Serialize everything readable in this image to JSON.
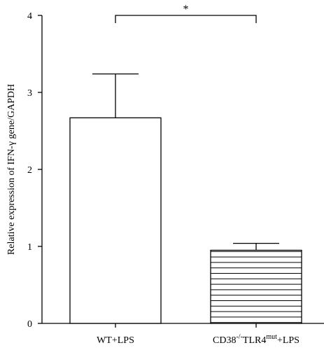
{
  "chart_data": {
    "type": "bar",
    "categories": [
      "WT+LPS",
      "CD38-/-TLR4mut+LPS"
    ],
    "category_labels": [
      {
        "parts": [
          {
            "text": "WT+LPS"
          }
        ]
      },
      {
        "parts": [
          {
            "text": "CD38"
          },
          {
            "text": "-/-",
            "sup": true
          },
          {
            "text": "TLR4"
          },
          {
            "text": "mut",
            "sup": true
          },
          {
            "text": "+LPS"
          }
        ]
      }
    ],
    "values": [
      2.67,
      0.95
    ],
    "errors": [
      0.57,
      0.09
    ],
    "fills": [
      "plain",
      "horizontal-stripes"
    ],
    "ylabel": "Relative expression of IFN-γ gene/GAPDH",
    "ylim": [
      0,
      4
    ],
    "yticks": [
      0,
      1,
      2,
      3,
      4
    ],
    "grid": false,
    "significance": {
      "between": [
        0,
        1
      ],
      "label": "*"
    }
  },
  "colors": {
    "stroke": "#000000",
    "fill": "#ffffff"
  }
}
